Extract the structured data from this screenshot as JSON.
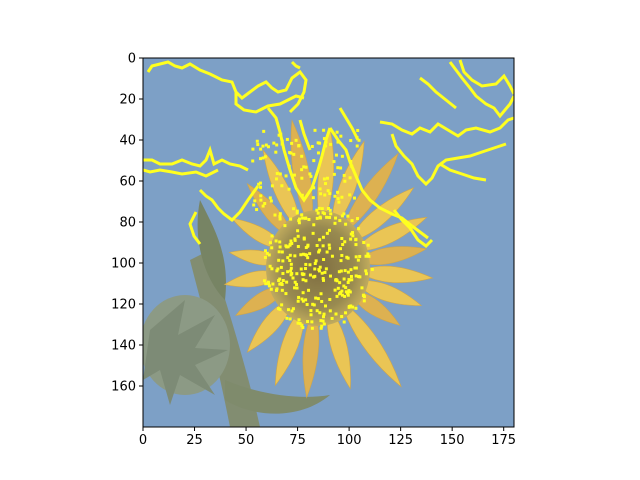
{
  "chart_data": {
    "type": "heatmap",
    "title": "",
    "xlabel": "",
    "ylabel": "",
    "image_size": [
      180,
      180
    ],
    "xlim": [
      0,
      180
    ],
    "ylim": [
      180,
      0
    ],
    "x_ticks": [
      0,
      25,
      50,
      75,
      100,
      125,
      150,
      175
    ],
    "y_ticks": [
      0,
      20,
      40,
      60,
      80,
      100,
      120,
      140,
      160
    ],
    "grid": false,
    "legend": "none",
    "overlay_color": "#ffff00",
    "colors": {
      "sky": "#6b93bf",
      "petal": "#e8bd3e",
      "petal_dark": "#d9a73a",
      "disk": "#7a6a2f",
      "stem": "#6f7d5a",
      "bud": "#80907a"
    }
  }
}
